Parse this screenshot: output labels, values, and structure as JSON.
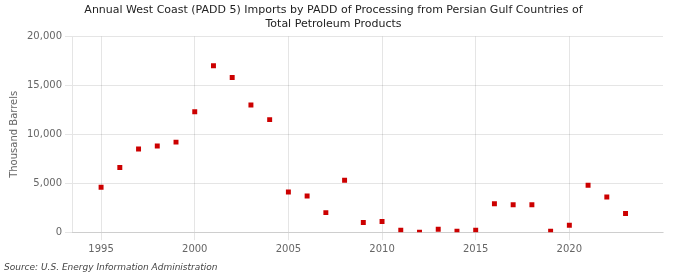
{
  "chart_data": {
    "type": "scatter",
    "title": "Annual West Coast (PADD 5) Imports by PADD of Processing from Persian Gulf Countries of\nTotal Petroleum Products",
    "ylabel": "Thousand Barrels",
    "annotation": "Source: U.S. Energy Information Administration",
    "x": [
      1995,
      1996,
      1997,
      1998,
      1999,
      2000,
      2001,
      2002,
      2003,
      2004,
      2005,
      2006,
      2007,
      2008,
      2009,
      2010,
      2011,
      2012,
      2013,
      2014,
      2015,
      2016,
      2017,
      2018,
      2019,
      2020,
      2021,
      2022,
      2023
    ],
    "values": [
      4600,
      6600,
      8500,
      8800,
      9200,
      12300,
      17000,
      15800,
      13000,
      11500,
      4100,
      3700,
      2000,
      5300,
      1000,
      1100,
      200,
      0,
      300,
      100,
      200,
      2900,
      2800,
      2800,
      100,
      700,
      4800,
      3600,
      1900
    ],
    "color": "#cc0000",
    "marker": "square",
    "xlim": [
      1993.5,
      2025
    ],
    "ylim": [
      0,
      20000
    ],
    "xticks": [
      1995,
      2000,
      2005,
      2010,
      2015,
      2020
    ],
    "yticks": [
      0,
      {
        "value": 5000,
        "label": "5,000"
      },
      {
        "value": 10000,
        "label": "10,000"
      },
      {
        "value": 15000,
        "label": "15,000"
      },
      {
        "value": 20000,
        "label": "20,000"
      }
    ],
    "grid": true
  }
}
